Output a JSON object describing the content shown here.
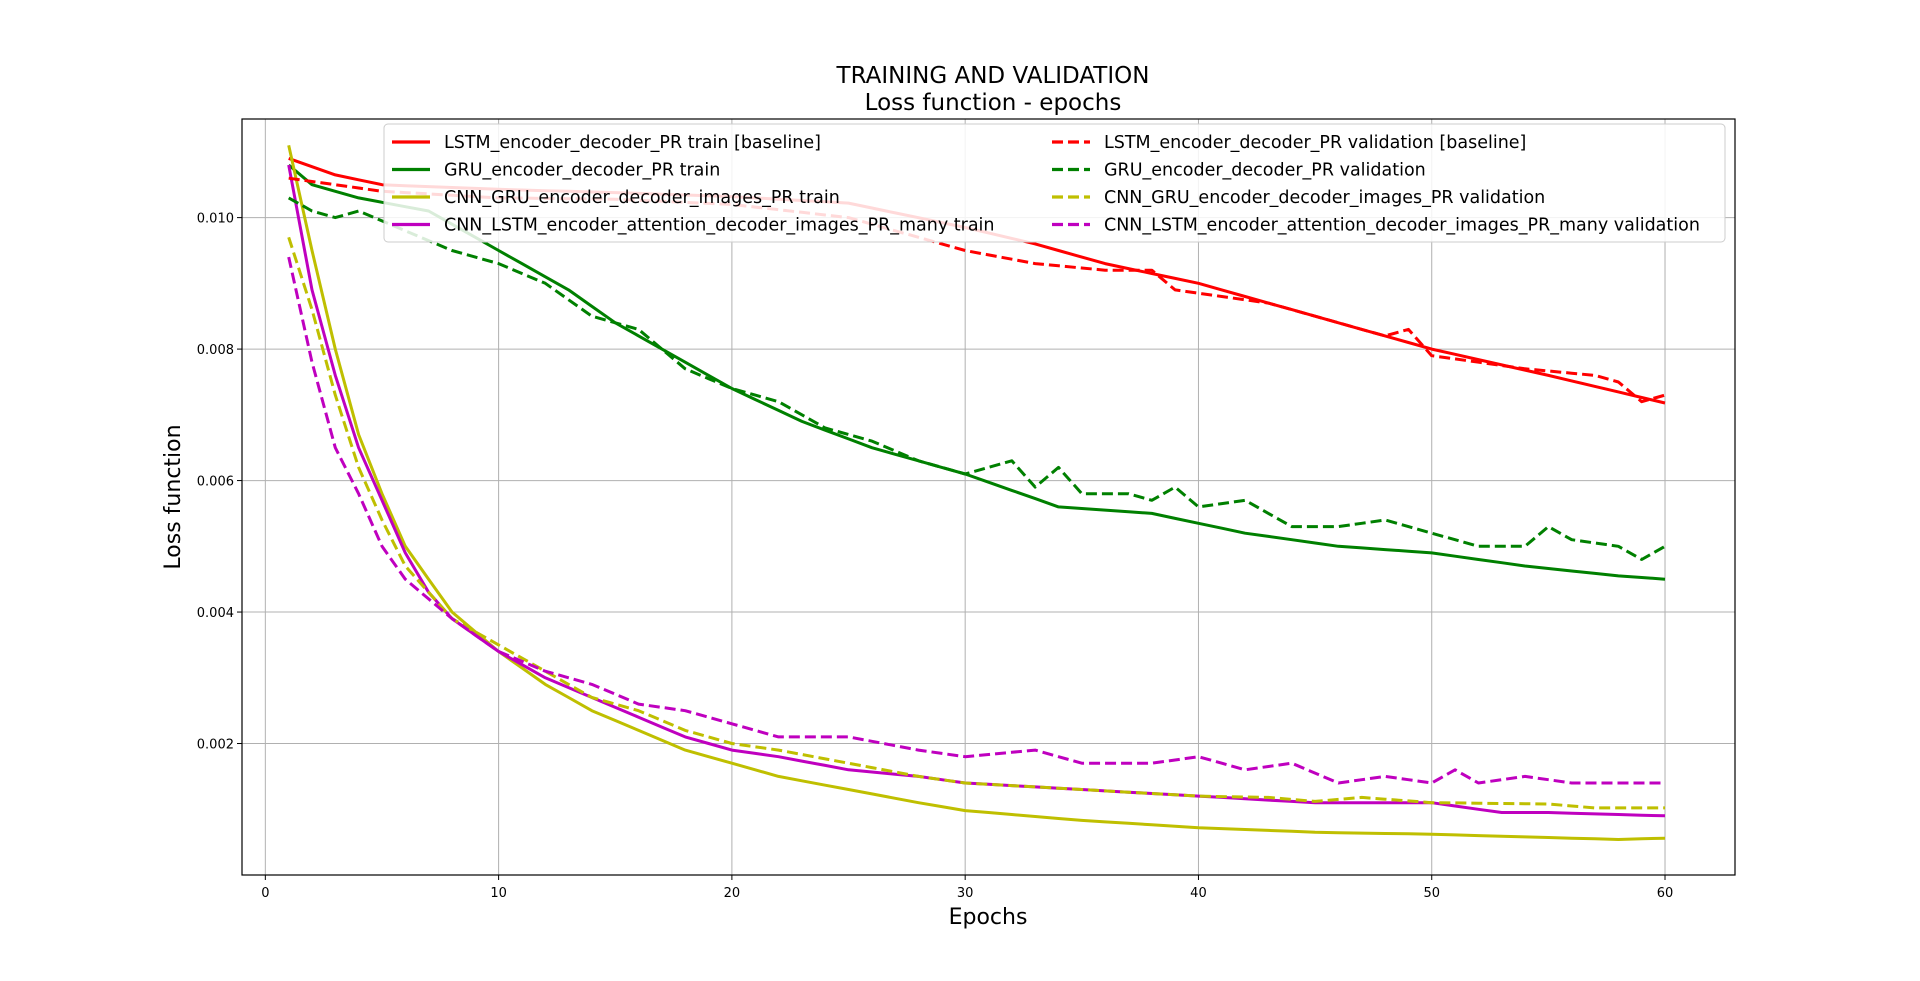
{
  "chart_data": {
    "type": "line",
    "title": "TRAINING AND VALIDATION",
    "subtitle": "Loss function - epochs",
    "xlabel": "Epochs",
    "ylabel": "Loss function",
    "xlim": [
      -1,
      63
    ],
    "ylim": [
      0.0,
      0.0115
    ],
    "xticks": [
      0,
      10,
      20,
      30,
      40,
      50,
      60
    ],
    "yticks": [
      0.002,
      0.004,
      0.006,
      0.008,
      0.01
    ],
    "xtick_labels": [
      "0",
      "10",
      "20",
      "30",
      "40",
      "50",
      "60"
    ],
    "ytick_labels": [
      "0.002",
      "0.004",
      "0.006",
      "0.008",
      "0.010"
    ],
    "grid": true,
    "legend_position": "top",
    "series": [
      {
        "name": "LSTM_encoder_decoder_PR train [baseline]",
        "color": "#ff0000",
        "dashed": false,
        "key_points": [
          [
            1,
            0.0109
          ],
          [
            3,
            0.01065
          ],
          [
            5,
            0.0105
          ],
          [
            10,
            0.01043
          ],
          [
            15,
            0.01038
          ],
          [
            20,
            0.01032
          ],
          [
            25,
            0.01022
          ],
          [
            30,
            0.00985
          ],
          [
            33,
            0.0096
          ],
          [
            36,
            0.0093
          ],
          [
            40,
            0.009
          ],
          [
            45,
            0.0085
          ],
          [
            50,
            0.008
          ],
          [
            55,
            0.0076
          ],
          [
            60,
            0.00718
          ]
        ]
      },
      {
        "name": "GRU_encoder_decoder_PR train",
        "color": "#008000",
        "dashed": false,
        "key_points": [
          [
            1,
            0.0108
          ],
          [
            2,
            0.0105
          ],
          [
            4,
            0.0103
          ],
          [
            7,
            0.0101
          ],
          [
            10,
            0.0095
          ],
          [
            13,
            0.0089
          ],
          [
            15,
            0.0084
          ],
          [
            17,
            0.008
          ],
          [
            20,
            0.0074
          ],
          [
            23,
            0.0069
          ],
          [
            26,
            0.0065
          ],
          [
            30,
            0.0061
          ],
          [
            34,
            0.0056
          ],
          [
            38,
            0.0055
          ],
          [
            42,
            0.0052
          ],
          [
            46,
            0.005
          ],
          [
            50,
            0.0049
          ],
          [
            54,
            0.0047
          ],
          [
            58,
            0.00455
          ],
          [
            60,
            0.0045
          ]
        ]
      },
      {
        "name": "CNN_GRU_encoder_decoder_images_PR train",
        "color": "#bfbf00",
        "dashed": false,
        "key_points": [
          [
            1,
            0.0111
          ],
          [
            2,
            0.0095
          ],
          [
            3,
            0.008
          ],
          [
            4,
            0.0067
          ],
          [
            5,
            0.0058
          ],
          [
            6,
            0.005
          ],
          [
            7,
            0.0045
          ],
          [
            8,
            0.004
          ],
          [
            10,
            0.0034
          ],
          [
            12,
            0.0029
          ],
          [
            14,
            0.0025
          ],
          [
            16,
            0.0022
          ],
          [
            18,
            0.0019
          ],
          [
            20,
            0.0017
          ],
          [
            22,
            0.0015
          ],
          [
            25,
            0.0013
          ],
          [
            28,
            0.0011
          ],
          [
            30,
            0.00098
          ],
          [
            35,
            0.00083
          ],
          [
            40,
            0.00072
          ],
          [
            45,
            0.00065
          ],
          [
            50,
            0.00062
          ],
          [
            55,
            0.00057
          ],
          [
            58,
            0.00054
          ],
          [
            60,
            0.00056
          ]
        ]
      },
      {
        "name": "CNN_LSTM_encoder_attention_decoder_images_PR_many train",
        "color": "#bf00bf",
        "dashed": false,
        "key_points": [
          [
            1,
            0.0108
          ],
          [
            2,
            0.0089
          ],
          [
            3,
            0.0076
          ],
          [
            4,
            0.0065
          ],
          [
            5,
            0.0057
          ],
          [
            6,
            0.0049
          ],
          [
            7,
            0.0043
          ],
          [
            8,
            0.0039
          ],
          [
            10,
            0.0034
          ],
          [
            12,
            0.003
          ],
          [
            14,
            0.0027
          ],
          [
            16,
            0.0024
          ],
          [
            18,
            0.0021
          ],
          [
            20,
            0.0019
          ],
          [
            22,
            0.0018
          ],
          [
            25,
            0.0016
          ],
          [
            28,
            0.0015
          ],
          [
            30,
            0.0014
          ],
          [
            35,
            0.0013
          ],
          [
            40,
            0.0012
          ],
          [
            45,
            0.0011
          ],
          [
            50,
            0.0011
          ],
          [
            53,
            0.00095
          ],
          [
            55,
            0.00095
          ],
          [
            60,
            0.0009
          ]
        ]
      },
      {
        "name": "LSTM_encoder_decoder_PR validation [baseline]",
        "color": "#ff0000",
        "dashed": true,
        "key_points": [
          [
            1,
            0.0106
          ],
          [
            3,
            0.0105
          ],
          [
            5,
            0.0104
          ],
          [
            10,
            0.0103
          ],
          [
            15,
            0.01028
          ],
          [
            20,
            0.0102
          ],
          [
            25,
            0.01
          ],
          [
            28,
            0.0097
          ],
          [
            30,
            0.0095
          ],
          [
            33,
            0.0093
          ],
          [
            36,
            0.0092
          ],
          [
            38,
            0.0092
          ],
          [
            39,
            0.0089
          ],
          [
            43,
            0.0087
          ],
          [
            45,
            0.0085
          ],
          [
            48,
            0.0082
          ],
          [
            49,
            0.0083
          ],
          [
            50,
            0.0079
          ],
          [
            54,
            0.0077
          ],
          [
            57,
            0.0076
          ],
          [
            58,
            0.0075
          ],
          [
            59,
            0.0072
          ],
          [
            60,
            0.0073
          ]
        ]
      },
      {
        "name": "GRU_encoder_decoder_PR validation",
        "color": "#008000",
        "dashed": true,
        "key_points": [
          [
            1,
            0.0103
          ],
          [
            2,
            0.0101
          ],
          [
            3,
            0.01
          ],
          [
            4,
            0.0101
          ],
          [
            6,
            0.0098
          ],
          [
            8,
            0.0095
          ],
          [
            10,
            0.0093
          ],
          [
            12,
            0.009
          ],
          [
            14,
            0.0085
          ],
          [
            16,
            0.0083
          ],
          [
            18,
            0.0077
          ],
          [
            20,
            0.0074
          ],
          [
            22,
            0.0072
          ],
          [
            24,
            0.0068
          ],
          [
            26,
            0.0066
          ],
          [
            28,
            0.0063
          ],
          [
            30,
            0.0061
          ],
          [
            32,
            0.0063
          ],
          [
            33,
            0.0059
          ],
          [
            34,
            0.0062
          ],
          [
            35,
            0.0058
          ],
          [
            37,
            0.0058
          ],
          [
            38,
            0.0057
          ],
          [
            39,
            0.0059
          ],
          [
            40,
            0.0056
          ],
          [
            42,
            0.0057
          ],
          [
            44,
            0.0053
          ],
          [
            46,
            0.0053
          ],
          [
            48,
            0.0054
          ],
          [
            50,
            0.0052
          ],
          [
            52,
            0.005
          ],
          [
            54,
            0.005
          ],
          [
            55,
            0.0053
          ],
          [
            56,
            0.0051
          ],
          [
            58,
            0.005
          ],
          [
            59,
            0.0048
          ],
          [
            60,
            0.005
          ]
        ]
      },
      {
        "name": "CNN_GRU_encoder_decoder_images_PR validation",
        "color": "#bfbf00",
        "dashed": true,
        "key_points": [
          [
            1,
            0.0097
          ],
          [
            2,
            0.0086
          ],
          [
            3,
            0.0073
          ],
          [
            4,
            0.0062
          ],
          [
            5,
            0.0054
          ],
          [
            6,
            0.0047
          ],
          [
            7,
            0.0043
          ],
          [
            8,
            0.0039
          ],
          [
            10,
            0.0035
          ],
          [
            12,
            0.0031
          ],
          [
            14,
            0.0027
          ],
          [
            16,
            0.0025
          ],
          [
            18,
            0.0022
          ],
          [
            20,
            0.002
          ],
          [
            22,
            0.0019
          ],
          [
            25,
            0.0017
          ],
          [
            28,
            0.0015
          ],
          [
            30,
            0.0014
          ],
          [
            35,
            0.0013
          ],
          [
            40,
            0.0012
          ],
          [
            43,
            0.00118
          ],
          [
            45,
            0.00112
          ],
          [
            47,
            0.00118
          ],
          [
            50,
            0.0011
          ],
          [
            55,
            0.00108
          ],
          [
            57,
            0.00102
          ],
          [
            60,
            0.00102
          ]
        ]
      },
      {
        "name": "CNN_LSTM_encoder_attention_decoder_images_PR_many validation",
        "color": "#bf00bf",
        "dashed": true,
        "key_points": [
          [
            1,
            0.0094
          ],
          [
            2,
            0.0078
          ],
          [
            3,
            0.0065
          ],
          [
            4,
            0.0058
          ],
          [
            5,
            0.005
          ],
          [
            6,
            0.0045
          ],
          [
            7,
            0.0042
          ],
          [
            8,
            0.0039
          ],
          [
            10,
            0.0034
          ],
          [
            12,
            0.0031
          ],
          [
            14,
            0.0029
          ],
          [
            16,
            0.0026
          ],
          [
            18,
            0.0025
          ],
          [
            20,
            0.0023
          ],
          [
            22,
            0.0021
          ],
          [
            25,
            0.0021
          ],
          [
            28,
            0.0019
          ],
          [
            30,
            0.0018
          ],
          [
            33,
            0.0019
          ],
          [
            35,
            0.0017
          ],
          [
            38,
            0.0017
          ],
          [
            40,
            0.0018
          ],
          [
            42,
            0.0016
          ],
          [
            44,
            0.0017
          ],
          [
            46,
            0.0014
          ],
          [
            48,
            0.0015
          ],
          [
            50,
            0.0014
          ],
          [
            51,
            0.0016
          ],
          [
            52,
            0.0014
          ],
          [
            54,
            0.0015
          ],
          [
            56,
            0.0014
          ],
          [
            60,
            0.0014
          ]
        ]
      }
    ]
  }
}
